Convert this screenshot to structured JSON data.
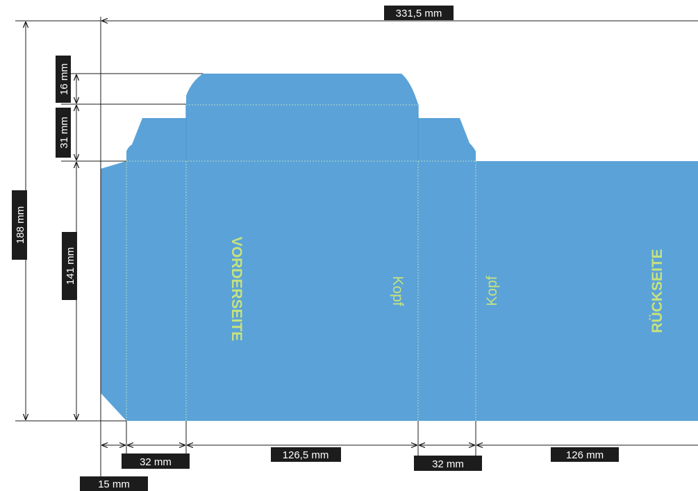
{
  "colors": {
    "box_fill": "#5aa2d8",
    "box_edge": "#4f97cf",
    "fold_line": "#d9ecb8",
    "text_green": "#c7e27c",
    "dim_line": "#1a1a1a",
    "label_bg": "#1c1c1c",
    "label_text": "#ffffff"
  },
  "dimensions": {
    "total_width": "331,5 mm",
    "total_height": "188 mm",
    "lid_flap": "16 mm",
    "top_flap": "31 mm",
    "body_height": "141 mm",
    "glue_flap": "15 mm",
    "side_1": "32 mm",
    "front_width": "126,5 mm",
    "side_2": "32 mm",
    "back_width": "126 mm"
  },
  "panels": {
    "front": "VORDERSEITE",
    "back": "RÜCKSEITE",
    "head_1": "Kopf",
    "head_2": "Kopf"
  }
}
